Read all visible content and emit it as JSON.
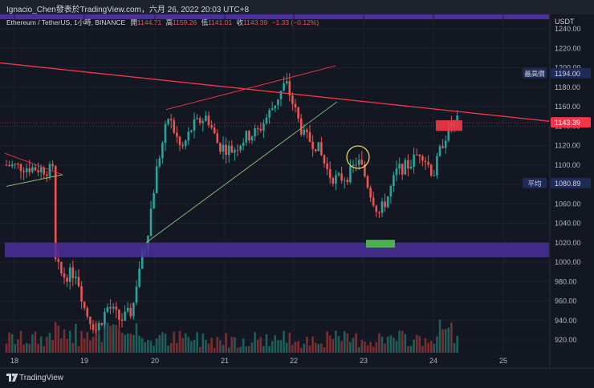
{
  "header": {
    "attribution": "Ignacio_Chen發表於TradingView.com，六月 26, 2022 20:03 UTC+8",
    "symbol": "Ethereum / TetherUS, 1小時, BINANCE",
    "open_label": "開",
    "open": "1144.71",
    "high_label": "高",
    "high": "1159.26",
    "low_label": "低",
    "low": "1141.01",
    "close_label": "收",
    "close": "1143.39",
    "change": "−1.33 (−0.12%)"
  },
  "footer": {
    "brand": "TradingView"
  },
  "chart_data": {
    "type": "candlestick",
    "currency": "USDT",
    "x_ticks": [
      "18",
      "19",
      "20",
      "21",
      "22",
      "23",
      "24",
      "25"
    ],
    "y_ticks": [
      920,
      940,
      960,
      980,
      1000,
      1020,
      1040,
      1060,
      1080,
      1100,
      1120,
      1140,
      1160,
      1180,
      1200,
      1220,
      1240
    ],
    "ylim": [
      910,
      1245
    ],
    "price_labels": [
      {
        "label": "最高價",
        "value": "1194.00",
        "price": 1194.0,
        "color": "#1e2a58",
        "label_color": "#d1d4dc"
      },
      {
        "label": "",
        "value": "1143.39",
        "price": 1143.39,
        "color": "#f23645",
        "label_color": "#ffffff"
      },
      {
        "label": "平均",
        "value": "1080.89",
        "price": 1080.89,
        "color": "#1e2a58",
        "label_color": "#d1d4dc"
      }
    ],
    "zones": [
      {
        "name": "support",
        "from": 1005,
        "to": 1020,
        "color": "#4b2f9a"
      }
    ],
    "colors": {
      "up": "#26a69a",
      "down": "#ef5350",
      "upvol": "#1e5f59",
      "downvol": "#7a2e31",
      "trend": "#f23645",
      "channel": "#89c67a",
      "grid": "#1e222d"
    }
  }
}
